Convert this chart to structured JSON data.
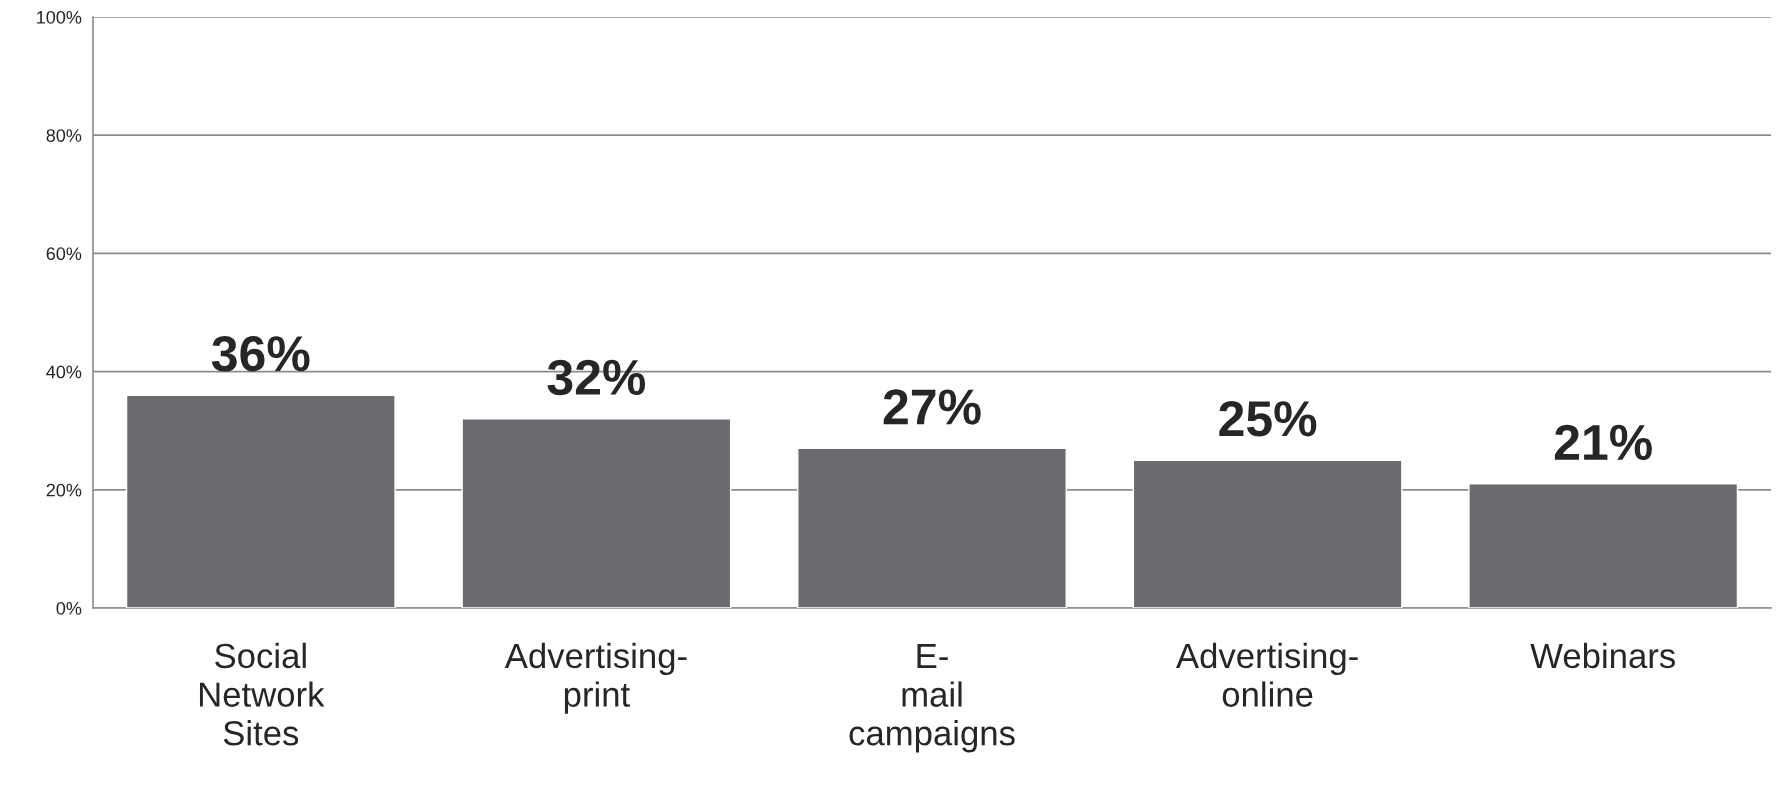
{
  "chart_data": {
    "type": "bar",
    "categories": [
      "Social Network Sites",
      "Advertising-print",
      "E-mail campaigns",
      "Advertising-online",
      "Webinars"
    ],
    "values": [
      36,
      32,
      27,
      25,
      21
    ],
    "color": "#6a6b6f",
    "ylim": [
      0,
      100
    ],
    "yticks": [
      {
        "value": 0,
        "label": "0%"
      },
      {
        "value": 20,
        "label": "20%"
      },
      {
        "value": 40,
        "label": "40%"
      },
      {
        "value": 60,
        "label": "60%"
      },
      {
        "value": 80,
        "label": "80%"
      },
      {
        "value": 100,
        "label": "100%"
      }
    ],
    "value_labels": [
      "36%",
      "32%",
      "27%",
      "25%",
      "21%"
    ],
    "grid": "y",
    "legend": false
  }
}
